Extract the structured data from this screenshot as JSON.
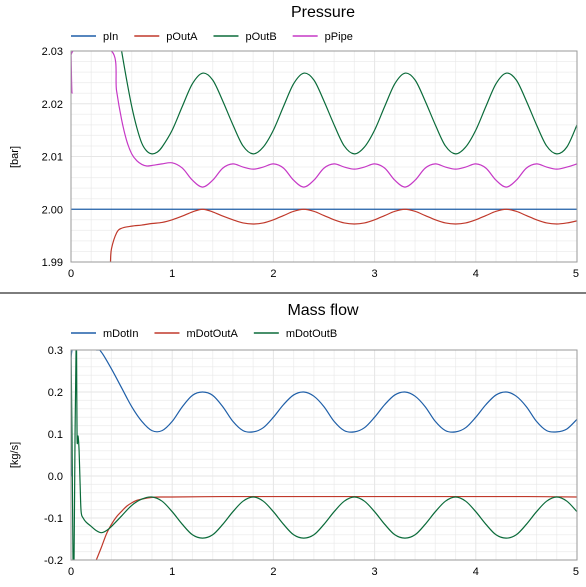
{
  "chart_data": [
    {
      "type": "line",
      "title": "Pressure",
      "xlabel": "",
      "ylabel": "[bar]",
      "xlim": [
        0,
        5
      ],
      "ylim": [
        1.99,
        2.03
      ],
      "xticks": [
        "0",
        "1",
        "2",
        "3",
        "4",
        "5"
      ],
      "yticks": [
        "1.99",
        "2.00",
        "2.01",
        "2.02",
        "2.03"
      ],
      "grid": true,
      "legend": "top-left",
      "series": [
        {
          "name": "pIn",
          "color": "#1f5fa8",
          "x": [
            0,
            5
          ],
          "y": [
            2.0,
            2.0
          ]
        },
        {
          "name": "pOutA",
          "color": "#c0392b",
          "x": [
            0.39,
            0.4,
            0.45,
            0.5,
            0.6,
            0.7,
            0.8,
            0.9,
            1.0,
            1.1,
            1.2,
            1.3,
            1.4,
            1.5,
            1.6,
            1.7,
            1.8,
            1.9,
            2.0,
            2.1,
            2.2,
            2.3,
            2.4,
            2.5,
            2.6,
            2.7,
            2.8,
            2.9,
            3.0,
            3.1,
            3.2,
            3.3,
            3.4,
            3.5,
            3.6,
            3.7,
            3.8,
            3.9,
            4.0,
            4.1,
            4.2,
            4.3,
            4.4,
            4.5,
            4.6,
            4.7,
            4.8,
            4.9,
            5.0
          ],
          "y": [
            1.99,
            1.9925,
            1.9955,
            1.9964,
            1.9968,
            1.997,
            1.9973,
            1.9975,
            1.998,
            1.9987,
            1.9995,
            2.0,
            1.9995,
            1.9987,
            1.998,
            1.9974,
            1.9972,
            1.9974,
            1.998,
            1.9988,
            1.9996,
            2.0,
            1.9996,
            1.9988,
            1.998,
            1.9974,
            1.9972,
            1.9974,
            1.998,
            1.9988,
            1.9996,
            2.0,
            1.9996,
            1.9988,
            1.998,
            1.9974,
            1.9972,
            1.9974,
            1.998,
            1.9988,
            1.9996,
            2.0,
            1.9996,
            1.9988,
            1.998,
            1.9974,
            1.9972,
            1.9974,
            1.9978
          ]
        },
        {
          "name": "pOutB",
          "color": "#0b6b3a",
          "x": [
            0.5,
            0.55,
            0.6,
            0.65,
            0.7,
            0.75,
            0.8,
            0.85,
            0.9,
            1.0,
            1.1,
            1.2,
            1.3,
            1.4,
            1.5,
            1.6,
            1.7,
            1.8,
            1.9,
            2.0,
            2.1,
            2.2,
            2.3,
            2.4,
            2.5,
            2.6,
            2.7,
            2.8,
            2.9,
            3.0,
            3.1,
            3.2,
            3.3,
            3.4,
            3.5,
            3.6,
            3.7,
            3.8,
            3.9,
            4.0,
            4.1,
            4.2,
            4.3,
            4.4,
            4.5,
            4.6,
            4.7,
            4.8,
            4.9,
            5.0
          ],
          "y": [
            2.03,
            2.0245,
            2.0195,
            2.0155,
            2.0125,
            2.011,
            2.0105,
            2.0108,
            2.0118,
            2.015,
            2.0195,
            2.0238,
            2.0258,
            2.0245,
            2.0205,
            2.016,
            2.012,
            2.0105,
            2.0118,
            2.015,
            2.0195,
            2.0238,
            2.0258,
            2.0245,
            2.0205,
            2.016,
            2.012,
            2.0105,
            2.0118,
            2.015,
            2.0195,
            2.0238,
            2.0258,
            2.0245,
            2.0205,
            2.016,
            2.012,
            2.0105,
            2.0118,
            2.015,
            2.0195,
            2.0238,
            2.0258,
            2.0245,
            2.0205,
            2.016,
            2.012,
            2.0105,
            2.0118,
            2.016
          ]
        },
        {
          "name": "pPipe",
          "color": "#c639c6",
          "x": [
            0.0,
            0.01,
            0.02,
            0.4,
            0.45,
            0.5,
            0.55,
            0.6,
            0.65,
            0.7,
            0.75,
            0.8,
            0.9,
            1.0,
            1.1,
            1.2,
            1.3,
            1.4,
            1.5,
            1.6,
            1.7,
            1.8,
            1.9,
            2.0,
            2.1,
            2.2,
            2.3,
            2.4,
            2.5,
            2.6,
            2.7,
            2.8,
            2.9,
            3.0,
            3.1,
            3.2,
            3.3,
            3.4,
            3.5,
            3.6,
            3.7,
            3.8,
            3.9,
            4.0,
            4.1,
            4.2,
            4.3,
            4.4,
            4.5,
            4.6,
            4.7,
            4.8,
            4.9,
            5.0
          ],
          "y": [
            2.03,
            2.022,
            2.03,
            2.03,
            2.0225,
            2.017,
            2.013,
            2.0105,
            2.0092,
            2.0085,
            2.0082,
            2.0083,
            2.0086,
            2.0088,
            2.0078,
            2.0055,
            2.0042,
            2.0055,
            2.0078,
            2.0086,
            2.008,
            2.0076,
            2.008,
            2.0086,
            2.0078,
            2.0055,
            2.0042,
            2.0055,
            2.0078,
            2.0086,
            2.008,
            2.0076,
            2.008,
            2.0086,
            2.0078,
            2.0055,
            2.0042,
            2.0055,
            2.0078,
            2.0086,
            2.008,
            2.0076,
            2.008,
            2.0086,
            2.0078,
            2.0055,
            2.0042,
            2.0055,
            2.0078,
            2.0086,
            2.008,
            2.0076,
            2.008,
            2.0086
          ]
        }
      ]
    },
    {
      "type": "line",
      "title": "Mass flow",
      "xlabel": "",
      "ylabel": "[kg/s]",
      "xlim": [
        0,
        5
      ],
      "ylim": [
        -0.2,
        0.3
      ],
      "xticks": [
        "0",
        "1",
        "2",
        "3",
        "4",
        "5"
      ],
      "yticks": [
        "-0.2",
        "-0.1",
        "0.0",
        "0.1",
        "0.2",
        "0.3"
      ],
      "grid": true,
      "legend": "top-left",
      "series": [
        {
          "name": "mDotIn",
          "color": "#1f5fa8",
          "x": [
            0.0,
            0.005,
            0.01,
            0.25,
            0.3,
            0.4,
            0.5,
            0.6,
            0.7,
            0.8,
            0.9,
            1.0,
            1.1,
            1.2,
            1.3,
            1.4,
            1.5,
            1.6,
            1.7,
            1.8,
            1.9,
            2.0,
            2.1,
            2.2,
            2.3,
            2.4,
            2.5,
            2.6,
            2.7,
            2.8,
            2.9,
            3.0,
            3.1,
            3.2,
            3.3,
            3.4,
            3.5,
            3.6,
            3.7,
            3.8,
            3.9,
            4.0,
            4.1,
            4.2,
            4.3,
            4.4,
            4.5,
            4.6,
            4.7,
            4.8,
            4.9,
            5.0
          ],
          "y": [
            0.3,
            0.0,
            0.3,
            0.3,
            0.295,
            0.255,
            0.21,
            0.165,
            0.13,
            0.108,
            0.108,
            0.13,
            0.165,
            0.192,
            0.2,
            0.192,
            0.165,
            0.13,
            0.108,
            0.105,
            0.115,
            0.14,
            0.17,
            0.193,
            0.2,
            0.19,
            0.165,
            0.13,
            0.108,
            0.105,
            0.115,
            0.14,
            0.17,
            0.193,
            0.2,
            0.19,
            0.165,
            0.13,
            0.108,
            0.105,
            0.115,
            0.14,
            0.17,
            0.193,
            0.2,
            0.19,
            0.165,
            0.13,
            0.108,
            0.105,
            0.112,
            0.135
          ]
        },
        {
          "name": "mDotOutA",
          "color": "#c0392b",
          "x": [
            0.25,
            0.3,
            0.35,
            0.4,
            0.45,
            0.5,
            0.55,
            0.6,
            0.65,
            0.7,
            0.8,
            0.9,
            1.0,
            1.5,
            2.0,
            2.5,
            3.0,
            3.5,
            4.0,
            4.5,
            5.0
          ],
          "y": [
            -0.2,
            -0.17,
            -0.138,
            -0.115,
            -0.097,
            -0.084,
            -0.072,
            -0.064,
            -0.058,
            -0.055,
            -0.051,
            -0.05,
            -0.05,
            -0.049,
            -0.049,
            -0.049,
            -0.049,
            -0.049,
            -0.049,
            -0.049,
            -0.05
          ]
        },
        {
          "name": "mDotOutB",
          "color": "#0b6b3a",
          "x": [
            0.0,
            0.01,
            0.02,
            0.03,
            0.04,
            0.05,
            0.055,
            0.06,
            0.07,
            0.08,
            0.09,
            0.1,
            0.12,
            0.15,
            0.2,
            0.25,
            0.3,
            0.35,
            0.4,
            0.5,
            0.6,
            0.7,
            0.8,
            0.9,
            1.0,
            1.1,
            1.2,
            1.3,
            1.4,
            1.5,
            1.6,
            1.7,
            1.8,
            1.9,
            2.0,
            2.1,
            2.2,
            2.3,
            2.4,
            2.5,
            2.6,
            2.7,
            2.8,
            2.9,
            3.0,
            3.1,
            3.2,
            3.3,
            3.4,
            3.5,
            3.6,
            3.7,
            3.8,
            3.9,
            4.0,
            4.1,
            4.2,
            4.3,
            4.4,
            4.5,
            4.6,
            4.7,
            4.8,
            4.9,
            5.0
          ],
          "y": [
            0.3,
            0.1,
            -0.2,
            -0.2,
            0.1,
            0.3,
            0.3,
            0.09,
            0.095,
            0.06,
            -0.02,
            -0.085,
            -0.1,
            -0.11,
            -0.12,
            -0.13,
            -0.135,
            -0.13,
            -0.12,
            -0.095,
            -0.07,
            -0.055,
            -0.05,
            -0.06,
            -0.085,
            -0.115,
            -0.14,
            -0.148,
            -0.14,
            -0.115,
            -0.085,
            -0.06,
            -0.05,
            -0.06,
            -0.085,
            -0.115,
            -0.14,
            -0.148,
            -0.14,
            -0.115,
            -0.085,
            -0.06,
            -0.05,
            -0.06,
            -0.085,
            -0.115,
            -0.14,
            -0.148,
            -0.14,
            -0.115,
            -0.085,
            -0.06,
            -0.05,
            -0.06,
            -0.085,
            -0.115,
            -0.14,
            -0.148,
            -0.14,
            -0.115,
            -0.085,
            -0.06,
            -0.05,
            -0.06,
            -0.085
          ]
        }
      ]
    }
  ]
}
